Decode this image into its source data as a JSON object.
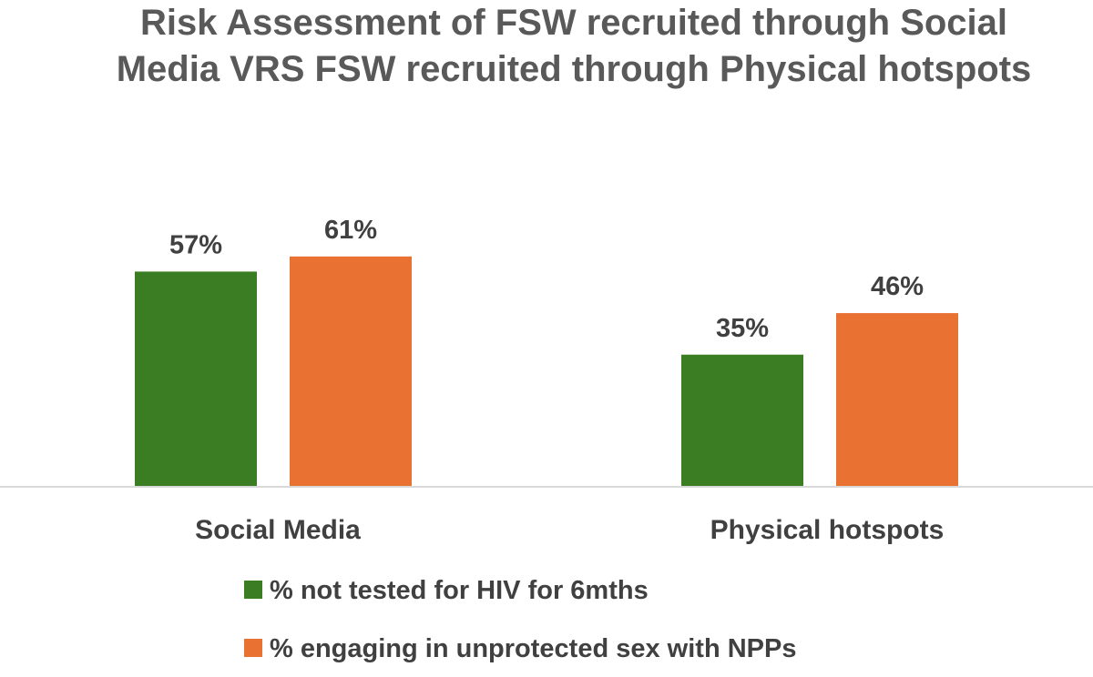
{
  "chart_data": {
    "type": "bar",
    "title": "Risk Assessment of FSW recruited through Social Media VRS FSW recruited through Physical hotspots",
    "title_lines": [
      "Risk Assessment of FSW recruited through Social",
      "Media VRS FSW recruited through Physical hotspots"
    ],
    "categories": [
      "Social Media",
      "Physical hotspots"
    ],
    "series": [
      {
        "name": "% not tested for HIV for 6mths",
        "values": [
          57,
          35
        ],
        "labels": [
          "57%",
          "35%"
        ],
        "color": "#3a7d22"
      },
      {
        "name": "% engaging in unprotected sex with NPPs",
        "values": [
          61,
          46
        ],
        "labels": [
          "61%",
          "46%"
        ],
        "color": "#e97132"
      }
    ],
    "ylim": [
      0,
      100
    ],
    "grid": false,
    "legend_position": "bottom",
    "xlabel": "",
    "ylabel": ""
  }
}
